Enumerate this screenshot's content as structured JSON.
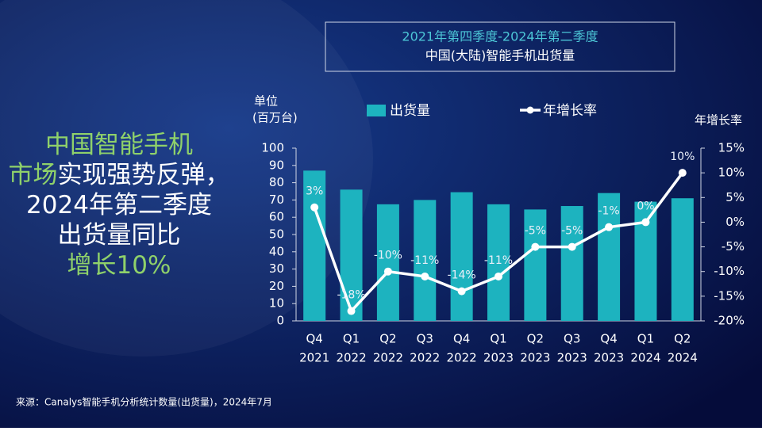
{
  "chart_data": {
    "type": "bar_line",
    "title": [
      "2021年第四季度-2024年第二季度",
      "中国(大陆)智能手机出货量"
    ],
    "ylabel": [
      "单位",
      "(百万台)"
    ],
    "y2label": "年增长率",
    "categories": [
      [
        "Q4",
        "2021"
      ],
      [
        "Q1",
        "2022"
      ],
      [
        "Q2",
        "2022"
      ],
      [
        "Q3",
        "2022"
      ],
      [
        "Q4",
        "2022"
      ],
      [
        "Q1",
        "2023"
      ],
      [
        "Q2",
        "2023"
      ],
      [
        "Q3",
        "2023"
      ],
      [
        "Q4",
        "2023"
      ],
      [
        "Q1",
        "2024"
      ],
      [
        "Q2",
        "2024"
      ]
    ],
    "series": [
      {
        "name": "出货量",
        "type": "bar",
        "color": "#1db3bf",
        "values": [
          87,
          76,
          67.5,
          70,
          74.5,
          67.5,
          64.5,
          66.5,
          74,
          69,
          71
        ]
      },
      {
        "name": "年增长率",
        "type": "line",
        "axis": "y2",
        "color": "#ffffff",
        "values": [
          3,
          -18,
          -10,
          -11,
          -14,
          -11,
          -5,
          -5,
          -1,
          0,
          10
        ],
        "value_labels": [
          "3%",
          "-18%",
          "-10%",
          "-11%",
          "-14%",
          "-11%",
          "-5%",
          "-5%",
          "-1%",
          "0%",
          "10%"
        ]
      }
    ],
    "ylim": [
      0,
      100
    ],
    "yticks": [
      0,
      10,
      20,
      30,
      40,
      50,
      60,
      70,
      80,
      90,
      100
    ],
    "y2lim": [
      -20,
      15
    ],
    "y2ticks": [
      {
        "value": -20,
        "label": "-20%"
      },
      {
        "value": -15,
        "label": "-15%"
      },
      {
        "value": -10,
        "label": "-10%"
      },
      {
        "value": -5,
        "label": "-5%"
      },
      {
        "value": 0,
        "label": "0%"
      },
      {
        "value": 5,
        "label": "5%"
      },
      {
        "value": 10,
        "label": "10%"
      },
      {
        "value": 15,
        "label": "15%"
      }
    ],
    "grid": false
  },
  "headline": [
    [
      {
        "text": "中国智能手机",
        "color": "#8fd16a"
      }
    ],
    [
      {
        "text": "市场",
        "color": "#8fd16a"
      },
      {
        "text": "实现强势反弹，",
        "color": "#ffffff"
      }
    ],
    [
      {
        "text": "2024年第二季度",
        "color": "#ffffff"
      }
    ],
    [
      {
        "text": "出货量同比",
        "color": "#ffffff"
      }
    ],
    [
      {
        "text": "增长10%",
        "color": "#8fd16a"
      }
    ]
  ],
  "source": "来源：Canalys智能手机分析统计数量(出货量)，2024年7月"
}
